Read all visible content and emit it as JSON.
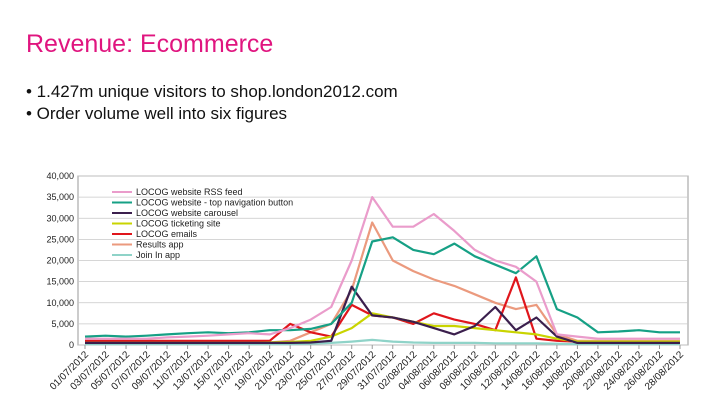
{
  "slide": {
    "title": "Revenue: Ecommerce",
    "bullets": [
      "• 1.427m unique visitors to shop.london2012.com",
      "• Order volume well into six figures"
    ]
  },
  "chart_data": {
    "type": "line",
    "categories": [
      "01/07/2012",
      "03/07/2012",
      "05/07/2012",
      "07/07/2012",
      "09/07/2012",
      "11/07/2012",
      "13/07/2012",
      "15/07/2012",
      "17/07/2012",
      "19/07/2012",
      "21/07/2012",
      "23/07/2012",
      "25/07/2012",
      "27/07/2012",
      "29/07/2012",
      "31/07/2012",
      "02/08/2012",
      "04/08/2012",
      "06/08/2012",
      "08/08/2012",
      "10/08/2012",
      "12/08/2012",
      "14/08/2012",
      "16/08/2012",
      "18/08/2012",
      "20/08/2012",
      "22/08/2012",
      "24/08/2012",
      "26/08/2012",
      "28/08/2012"
    ],
    "series": [
      {
        "name": "LOCOG website RSS feed",
        "color": "#ea9ccb",
        "values": [
          1500,
          1500,
          1500,
          1500,
          1800,
          2000,
          2200,
          2500,
          2800,
          2500,
          4000,
          6000,
          9000,
          20000,
          35000,
          28000,
          28000,
          31000,
          27000,
          22500,
          20000,
          18500,
          15000,
          2500,
          2000,
          1500,
          1500,
          1500,
          1500,
          1500
        ]
      },
      {
        "name": "LOCOG website - top navigation button",
        "color": "#16a085",
        "values": [
          2000,
          2200,
          2000,
          2200,
          2500,
          2800,
          3000,
          2800,
          3000,
          3500,
          3500,
          3800,
          5000,
          10000,
          24500,
          25500,
          22500,
          21500,
          24000,
          21000,
          19000,
          17000,
          21000,
          8500,
          6500,
          3000,
          3200,
          3500,
          3000,
          3000
        ]
      },
      {
        "name": "LOCOG website carousel",
        "color": "#3b1f4d",
        "values": [
          500,
          500,
          500,
          500,
          500,
          500,
          500,
          500,
          500,
          500,
          500,
          600,
          1000,
          13800,
          7000,
          6500,
          5500,
          4000,
          2500,
          4500,
          9000,
          3500,
          6500,
          2000,
          500,
          500,
          500,
          500,
          500,
          500
        ]
      },
      {
        "name": "LOCOG ticketing site",
        "color": "#c9d400",
        "values": [
          500,
          500,
          500,
          500,
          500,
          500,
          500,
          500,
          500,
          600,
          700,
          1000,
          2000,
          4000,
          7500,
          6500,
          5500,
          4500,
          4500,
          4000,
          3500,
          3000,
          2500,
          1500,
          800,
          800,
          800,
          800,
          800,
          800
        ]
      },
      {
        "name": "LOCOG emails",
        "color": "#e0161c",
        "values": [
          1000,
          1000,
          1000,
          1000,
          1000,
          1000,
          1000,
          1000,
          1000,
          1000,
          5000,
          3000,
          2000,
          9500,
          7000,
          6500,
          5000,
          7500,
          6000,
          5000,
          3500,
          16000,
          1500,
          1000,
          800,
          800,
          800,
          800,
          800,
          800
        ]
      },
      {
        "name": "Results app",
        "color": "#eb9a7e",
        "values": [
          500,
          500,
          500,
          500,
          500,
          500,
          500,
          500,
          500,
          600,
          1000,
          3000,
          5000,
          13000,
          29000,
          20000,
          17500,
          15500,
          14000,
          12000,
          10000,
          8500,
          9500,
          2500,
          1000,
          1000,
          1000,
          1000,
          1000,
          1000
        ]
      },
      {
        "name": "Join In app",
        "color": "#8fd3c8",
        "values": [
          200,
          200,
          200,
          200,
          200,
          200,
          200,
          200,
          200,
          200,
          200,
          300,
          500,
          800,
          1200,
          800,
          600,
          500,
          500,
          500,
          400,
          400,
          400,
          300,
          200,
          200,
          200,
          200,
          200,
          200
        ]
      }
    ],
    "ylim": [
      0,
      40000
    ],
    "yticks": [
      0,
      {
        "value": 5000,
        "label": "5,000"
      },
      {
        "value": 10000,
        "label": "10,000"
      },
      {
        "value": 15000,
        "label": "15,000"
      },
      {
        "value": 20000,
        "label": "20,000"
      },
      {
        "value": 25000,
        "label": "25,000"
      },
      {
        "value": 30000,
        "label": "30,000"
      },
      {
        "value": 35000,
        "label": "35,000"
      },
      {
        "value": 40000,
        "label": "40,000"
      }
    ],
    "grid": true,
    "legend": "upper-left"
  }
}
